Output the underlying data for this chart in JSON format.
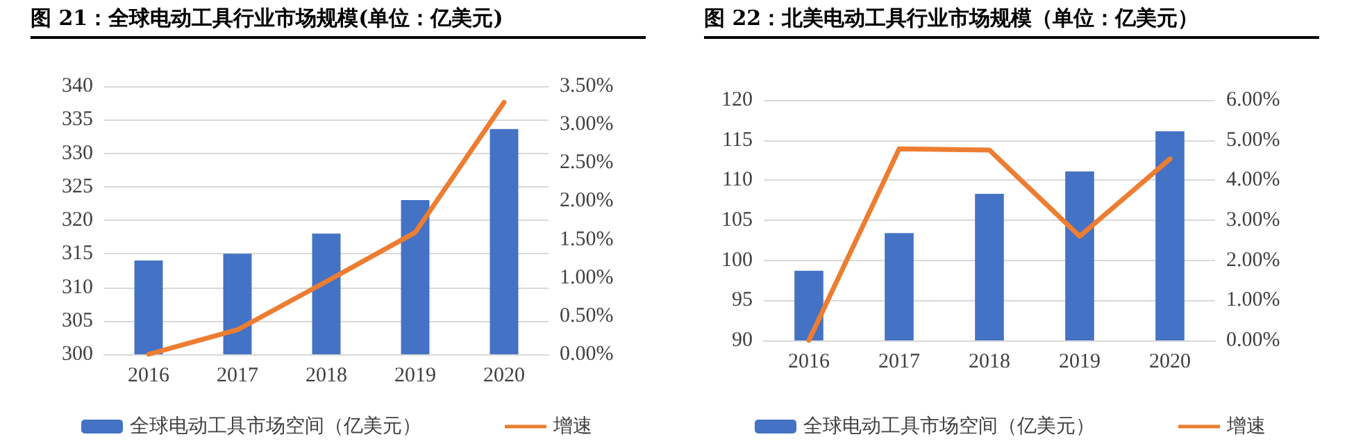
{
  "chart_data": [
    {
      "type": "bar",
      "title": "图  21：全球电动工具行业市场规模(单位：亿美元)",
      "categories": [
        "2016",
        "2017",
        "2018",
        "2019",
        "2020"
      ],
      "series": [
        {
          "name": "全球电动工具市场空间（亿美元）",
          "color": "#4472c4",
          "values": [
            314,
            315,
            318,
            323,
            333.6
          ]
        },
        {
          "name": "增速",
          "type": "line",
          "axis": "y2",
          "color": "#ed7d31",
          "values": [
            0,
            0.32,
            0.95,
            1.59,
            3.29
          ]
        }
      ],
      "ylim": [
        300,
        340
      ],
      "yticks": [
        300,
        305,
        310,
        315,
        320,
        325,
        330,
        335,
        340
      ],
      "y2lim": [
        0,
        3.5
      ],
      "y2ticks": [
        {
          "value": 0,
          "label": "0.00%"
        },
        {
          "value": 0.5,
          "label": "0.50%"
        },
        {
          "value": 1,
          "label": "1.00%"
        },
        {
          "value": 1.5,
          "label": "1.50%"
        },
        {
          "value": 2,
          "label": "2.00%"
        },
        {
          "value": 2.5,
          "label": "2.50%"
        },
        {
          "value": 3,
          "label": "3.00%"
        },
        {
          "value": 3.5,
          "label": "3.50%"
        }
      ],
      "grid": "y",
      "legend": "bottom",
      "marker": "none"
    },
    {
      "type": "bar",
      "title": "图  22：北美电动工具行业市场规模（单位：亿美元）",
      "categories": [
        "2016",
        "2017",
        "2018",
        "2019",
        "2020"
      ],
      "series": [
        {
          "name": "全球电动工具市场空间（亿美元）",
          "color": "#4472c4",
          "values": [
            98.7,
            103.4,
            108.3,
            111.1,
            116.1
          ]
        },
        {
          "name": "增速",
          "type": "line",
          "axis": "y2",
          "color": "#ed7d31",
          "values": [
            0,
            4.78,
            4.75,
            2.6,
            4.53
          ]
        }
      ],
      "ylim": [
        90,
        120
      ],
      "yticks": [
        90,
        95,
        100,
        105,
        110,
        115,
        120
      ],
      "y2lim": [
        0,
        6
      ],
      "y2ticks": [
        {
          "value": 0,
          "label": "0.00%"
        },
        {
          "value": 1,
          "label": "1.00%"
        },
        {
          "value": 2,
          "label": "2.00%"
        },
        {
          "value": 3,
          "label": "3.00%"
        },
        {
          "value": 4,
          "label": "4.00%"
        },
        {
          "value": 5,
          "label": "5.00%"
        },
        {
          "value": 6,
          "label": "6.00%"
        }
      ],
      "grid": "y",
      "legend": "bottom",
      "marker": "none"
    }
  ]
}
